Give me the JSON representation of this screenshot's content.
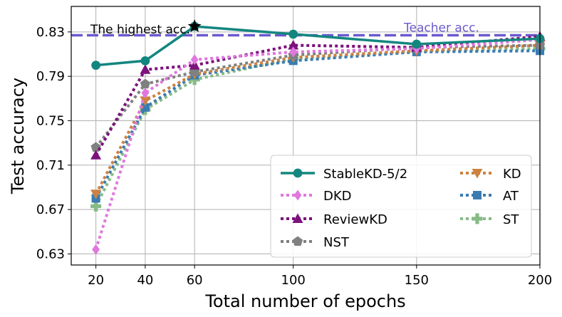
{
  "chart_data": {
    "type": "line",
    "xlabel": "Total number of epochs",
    "ylabel": "Test accuracy",
    "xlim": [
      10,
      200
    ],
    "ylim": [
      0.62,
      0.853
    ],
    "xticks": [
      20,
      40,
      60,
      100,
      150,
      200
    ],
    "yticks": [
      0.63,
      0.67,
      0.71,
      0.75,
      0.79,
      0.83
    ],
    "ytick_labels": [
      "0.63",
      "0.67",
      "0.71",
      "0.75",
      "0.79",
      "0.83"
    ],
    "grid": true,
    "legend_location": "lower-right",
    "series": [
      {
        "name": "StableKD-5/2",
        "color": "#13867f",
        "style": "solid",
        "marker": "circle",
        "x": [
          20,
          40,
          60,
          100,
          150,
          200
        ],
        "y": [
          0.8,
          0.804,
          0.835,
          0.828,
          0.819,
          0.824
        ]
      },
      {
        "name": "DKD",
        "color": "#df78df",
        "style": "dotted",
        "marker": "diamond",
        "x": [
          20,
          40,
          60,
          100,
          150,
          200
        ],
        "y": [
          0.634,
          0.775,
          0.805,
          0.812,
          0.815,
          0.823
        ]
      },
      {
        "name": "ReviewKD",
        "color": "#7c127c",
        "style": "dotted",
        "marker": "triangle-up",
        "x": [
          20,
          40,
          60,
          100,
          150,
          200
        ],
        "y": [
          0.719,
          0.796,
          0.8,
          0.818,
          0.816,
          0.826
        ]
      },
      {
        "name": "NST",
        "color": "#808080",
        "style": "dotted",
        "marker": "pentagon",
        "x": [
          20,
          40,
          60,
          100,
          150,
          200
        ],
        "y": [
          0.726,
          0.783,
          0.794,
          0.809,
          0.816,
          0.818
        ]
      },
      {
        "name": "KD",
        "color": "#cd8240",
        "style": "dotted",
        "marker": "triangle-down",
        "x": [
          20,
          40,
          60,
          100,
          150,
          200
        ],
        "y": [
          0.684,
          0.768,
          0.792,
          0.807,
          0.813,
          0.818
        ]
      },
      {
        "name": "AT",
        "color": "#3a7cb2",
        "style": "dotted",
        "marker": "square",
        "x": [
          20,
          40,
          60,
          100,
          150,
          200
        ],
        "y": [
          0.68,
          0.762,
          0.791,
          0.804,
          0.812,
          0.813
        ]
      },
      {
        "name": "ST",
        "color": "#86ba86",
        "style": "dotted",
        "marker": "plus",
        "x": [
          20,
          40,
          60,
          100,
          150,
          200
        ],
        "y": [
          0.673,
          0.76,
          0.787,
          0.806,
          0.813,
          0.815
        ]
      }
    ],
    "teacher_line": {
      "value": 0.827,
      "label": "Teacher acc.",
      "color": "#6a5acd"
    },
    "highest_point": {
      "x": 60,
      "y": 0.835,
      "label": "The highest acc."
    }
  }
}
